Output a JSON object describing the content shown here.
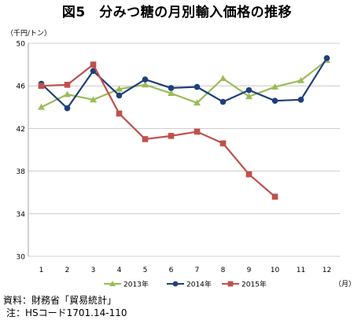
{
  "title": "図5　分みつ糖の月別輸入価格の推移",
  "unit_label": "（千円/トン）",
  "month_unit_label": "（月）",
  "notes": {
    "source": "資料：財務省「貿易統計」",
    "note": "注：HSコード1701.14-110"
  },
  "chart_data": {
    "type": "line",
    "title": "図5　分みつ糖の月別輸入価格の推移",
    "xlabel": "（月）",
    "ylabel": "（千円/トン）",
    "categories": [
      "1",
      "2",
      "3",
      "4",
      "5",
      "6",
      "7",
      "8",
      "9",
      "10",
      "11",
      "12"
    ],
    "ylim": [
      30,
      50
    ],
    "yticks": [
      30,
      34,
      38,
      42,
      46,
      50
    ],
    "grid": "horizontal",
    "legend_position": "bottom",
    "series": [
      {
        "name": "2013年",
        "color": "#9bbb59",
        "marker": "triangle",
        "values": [
          44.0,
          45.2,
          44.7,
          45.7,
          46.1,
          45.3,
          44.4,
          46.7,
          45.0,
          45.9,
          46.5,
          48.4
        ]
      },
      {
        "name": "2014年",
        "color": "#1f3f7a",
        "marker": "circle",
        "values": [
          46.2,
          43.9,
          47.4,
          45.1,
          46.6,
          45.8,
          45.9,
          44.5,
          45.6,
          44.6,
          44.7,
          48.6
        ]
      },
      {
        "name": "2015年",
        "color": "#c0504d",
        "marker": "square",
        "values": [
          46.0,
          46.1,
          48.0,
          43.4,
          41.0,
          41.3,
          41.7,
          40.6,
          37.7,
          35.6,
          null,
          null
        ]
      }
    ]
  }
}
